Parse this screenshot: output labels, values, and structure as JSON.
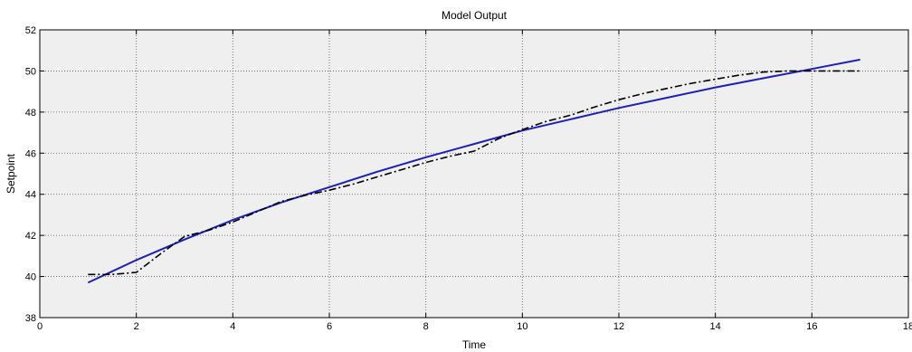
{
  "chart_data": {
    "type": "line",
    "title": "Model Output",
    "xlabel": "Time",
    "ylabel": "Setpoint",
    "xlim": [
      0,
      18
    ],
    "ylim": [
      38,
      52
    ],
    "xticks": [
      0,
      2,
      4,
      6,
      8,
      10,
      12,
      14,
      16,
      18
    ],
    "xtick_labels": [
      "0",
      "2",
      "4",
      "6",
      "8",
      "10",
      "12",
      "14",
      "16",
      "18"
    ],
    "yticks": [
      38,
      40,
      42,
      44,
      46,
      48,
      50,
      52
    ],
    "ytick_labels": [
      "38",
      "40",
      "42",
      "44",
      "46",
      "48",
      "50",
      "52"
    ],
    "grid": true,
    "colors": {
      "plot_bg": "#efefef",
      "grid": "#555555",
      "axis": "#000000"
    },
    "series": [
      {
        "style": "solid",
        "color": "#1c20b8",
        "x": [
          1,
          2,
          3,
          4,
          5,
          6,
          7,
          8,
          9,
          10,
          11,
          12,
          13,
          14,
          15,
          16,
          17
        ],
        "y": [
          39.7,
          40.8,
          41.8,
          42.75,
          43.6,
          44.35,
          45.1,
          45.8,
          46.45,
          47.1,
          47.65,
          48.2,
          48.7,
          49.2,
          49.65,
          50.1,
          50.55
        ]
      },
      {
        "style": "dash-dot",
        "color": "#000000",
        "x": [
          1,
          1.5,
          2,
          2.5,
          3,
          3.5,
          4,
          4.5,
          5,
          5.5,
          6,
          6.5,
          7,
          7.5,
          8,
          8.5,
          9,
          9.5,
          10,
          10.5,
          11,
          11.5,
          12,
          12.5,
          13,
          13.5,
          14,
          14.5,
          15,
          15.5,
          16,
          16.5,
          17
        ],
        "y": [
          40.1,
          40.1,
          40.2,
          41.1,
          41.95,
          42.25,
          42.65,
          43.15,
          43.65,
          43.95,
          44.2,
          44.5,
          44.85,
          45.2,
          45.55,
          45.85,
          46.1,
          46.7,
          47.15,
          47.55,
          47.85,
          48.25,
          48.6,
          48.9,
          49.15,
          49.4,
          49.6,
          49.8,
          49.95,
          50.0,
          50.0,
          50.0,
          50.0
        ]
      }
    ]
  }
}
